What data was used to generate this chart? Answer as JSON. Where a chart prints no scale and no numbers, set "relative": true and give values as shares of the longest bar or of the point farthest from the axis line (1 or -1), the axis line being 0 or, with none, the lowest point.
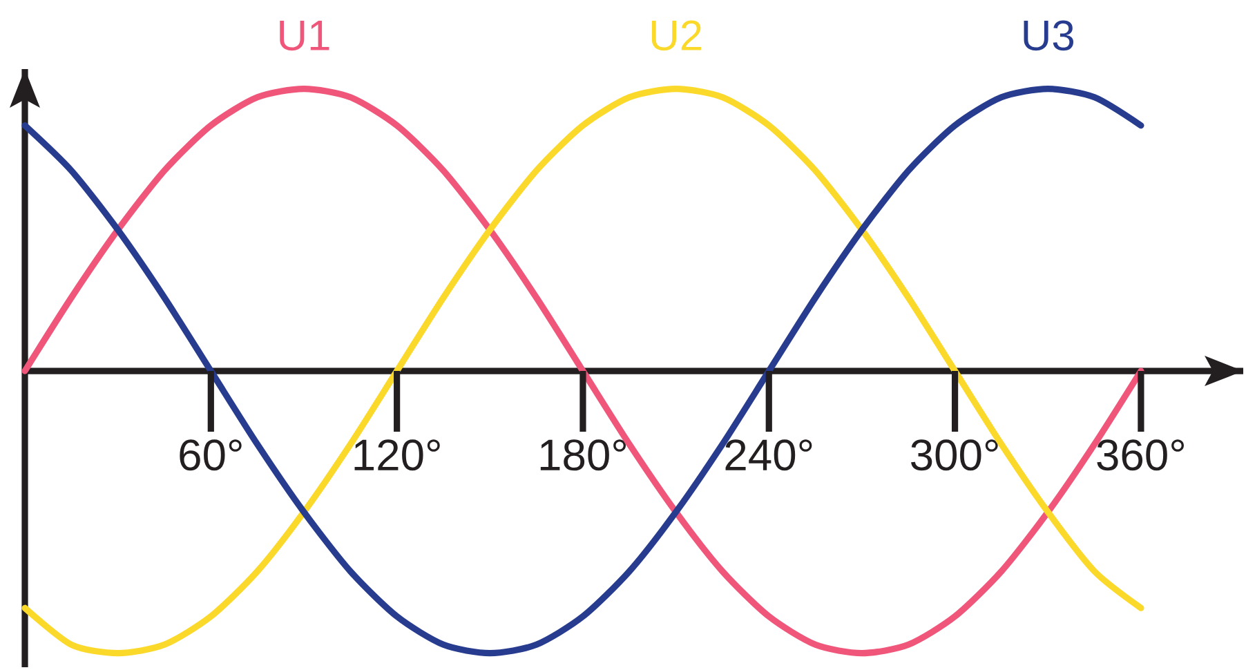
{
  "chart_data": {
    "type": "line",
    "relative": true,
    "x": [
      0,
      15,
      30,
      45,
      60,
      75,
      90,
      105,
      120,
      135,
      150,
      165,
      180,
      195,
      210,
      225,
      240,
      255,
      270,
      285,
      300,
      315,
      330,
      345,
      360
    ],
    "xlim": [
      0,
      393
    ],
    "xticks": [
      {
        "value": 60,
        "label": "60°"
      },
      {
        "value": 120,
        "label": "120°"
      },
      {
        "value": 180,
        "label": "180°"
      },
      {
        "value": 240,
        "label": "240°"
      },
      {
        "value": 300,
        "label": "300°"
      },
      {
        "value": 360,
        "label": "360°"
      }
    ],
    "series": [
      {
        "name": "U1",
        "color": "#f0567a",
        "values": [
          0,
          0.26,
          0.5,
          0.71,
          0.87,
          0.97,
          1,
          0.97,
          0.87,
          0.71,
          0.5,
          0.26,
          0,
          -0.26,
          -0.5,
          -0.71,
          -0.87,
          -0.97,
          -1,
          -0.97,
          -0.87,
          -0.71,
          -0.5,
          -0.26,
          0
        ]
      },
      {
        "name": "U2",
        "color": "#fbd92a",
        "values": [
          -0.84,
          -0.97,
          -1,
          -0.97,
          -0.87,
          -0.71,
          -0.5,
          -0.26,
          0,
          0.26,
          0.5,
          0.71,
          0.87,
          0.97,
          1,
          0.97,
          0.87,
          0.71,
          0.5,
          0.26,
          0,
          -0.26,
          -0.5,
          -0.71,
          -0.84
        ]
      },
      {
        "name": "U3",
        "color": "#273c8f",
        "values": [
          0.87,
          0.71,
          0.5,
          0.26,
          0,
          -0.26,
          -0.5,
          -0.71,
          -0.87,
          -0.97,
          -1,
          -0.97,
          -0.87,
          -0.71,
          -0.5,
          -0.26,
          0,
          0.26,
          0.5,
          0.71,
          0.87,
          0.97,
          1,
          0.97,
          0.87
        ]
      }
    ]
  }
}
